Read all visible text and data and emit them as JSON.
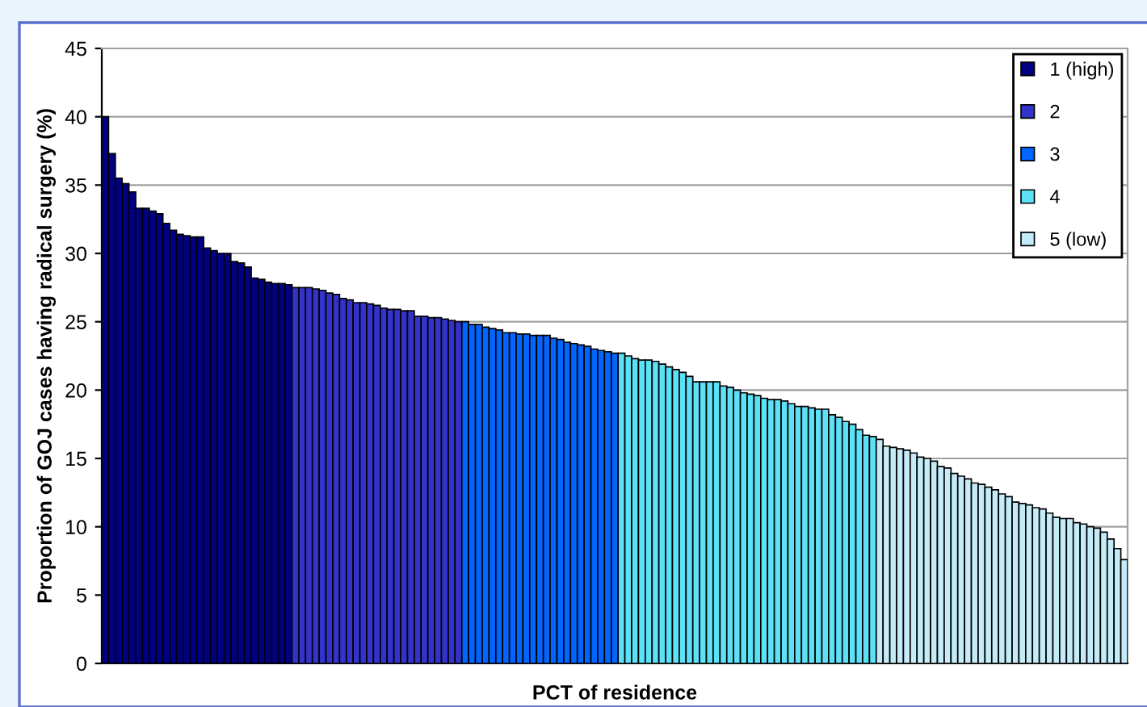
{
  "chart_data": {
    "type": "bar",
    "xlabel": "PCT of residence",
    "ylabel": "Proportion of GOJ cases having radical surgery (%)",
    "categories": [
      null,
      null,
      null,
      null,
      null,
      null,
      null,
      null,
      null,
      null,
      null,
      null,
      null,
      null,
      null,
      null,
      null,
      null,
      null,
      null,
      null,
      null,
      null,
      null,
      null,
      null,
      null,
      null,
      null,
      null,
      null,
      null,
      null,
      null,
      null,
      null,
      null,
      null,
      null,
      null,
      null,
      null,
      null,
      null,
      null,
      null,
      null,
      null,
      null,
      null,
      null,
      null,
      null,
      null,
      null,
      null,
      null,
      null,
      null,
      null,
      null,
      null,
      null,
      null,
      null,
      null,
      null,
      null,
      null,
      null,
      null,
      null,
      null,
      null,
      null,
      null,
      null,
      null,
      null,
      null,
      null,
      null,
      null,
      null,
      null,
      null,
      null,
      null,
      null,
      null,
      null,
      null,
      null,
      null,
      null,
      null,
      null,
      null,
      null,
      null,
      null,
      null,
      null,
      null,
      null,
      null,
      null,
      null,
      null,
      null,
      null,
      null,
      null,
      null,
      null,
      null,
      null,
      null,
      null,
      null,
      null,
      null,
      null,
      null,
      null,
      null,
      null,
      null,
      null,
      null,
      null,
      null,
      null,
      null,
      null,
      null,
      null,
      null,
      null,
      null,
      null,
      null,
      null,
      null,
      null,
      null,
      null,
      null,
      null,
      null,
      null
    ],
    "series": [
      {
        "name": "1 (high)",
        "color": "#000080",
        "values": [
          40,
          37.3,
          35.5,
          35.1,
          34.5,
          33.3,
          33.3,
          33.1,
          32.9,
          32.2,
          31.7,
          31.4,
          31.3,
          31.2,
          31.2,
          30.4,
          30.2,
          30.0,
          30.0,
          29.4,
          29.3,
          29.0,
          28.2,
          28.1,
          27.9,
          27.8,
          27.8,
          27.7,
          null,
          null,
          null,
          null,
          null,
          null,
          null,
          null,
          null,
          null,
          null,
          null,
          null,
          null,
          null,
          null,
          null,
          null,
          null,
          null,
          null,
          null,
          null,
          null,
          null,
          null,
          null,
          null,
          null,
          null,
          null,
          null,
          null,
          null,
          null,
          null,
          null,
          null,
          null,
          null,
          null,
          null,
          null,
          null,
          null,
          null,
          null,
          null,
          null,
          null,
          null,
          null,
          null,
          null,
          null,
          null,
          null,
          null,
          null,
          null,
          null,
          null,
          null,
          null,
          null,
          null,
          null,
          null,
          null,
          null,
          null,
          null,
          null,
          null,
          null,
          null,
          null,
          null,
          null,
          null,
          null,
          null,
          null,
          null,
          null,
          null,
          null,
          null,
          null,
          null,
          null,
          null,
          null,
          null,
          null,
          null,
          null,
          null,
          null,
          null,
          null,
          null,
          null,
          null,
          null,
          null,
          null,
          null,
          null,
          null,
          null,
          null,
          null,
          null,
          null,
          null,
          null,
          null,
          null,
          null,
          null,
          null,
          null
        ]
      },
      {
        "name": "2",
        "color": "#3333cc",
        "values": [
          null,
          null,
          null,
          null,
          null,
          null,
          null,
          null,
          null,
          null,
          null,
          null,
          null,
          null,
          null,
          null,
          null,
          null,
          null,
          null,
          null,
          null,
          null,
          null,
          null,
          null,
          null,
          null,
          27.5,
          27.5,
          27.5,
          27.4,
          27.3,
          27.1,
          27.0,
          26.7,
          26.6,
          26.4,
          26.4,
          26.3,
          26.2,
          26.0,
          25.9,
          25.9,
          25.8,
          25.8,
          25.4,
          25.4,
          25.3,
          25.3,
          25.2,
          25.1,
          25.0,
          null,
          null,
          null,
          null,
          null,
          null,
          null,
          null,
          null,
          null,
          null,
          null,
          null,
          null,
          null,
          null,
          null,
          null,
          null,
          null,
          null,
          null,
          null,
          null,
          null,
          null,
          null,
          null,
          null,
          null,
          null,
          null,
          null,
          null,
          null,
          null,
          null,
          null,
          null,
          null,
          null,
          null,
          null,
          null,
          null,
          null,
          null,
          null,
          null,
          null,
          null,
          null,
          null,
          null,
          null,
          null,
          null,
          null,
          null,
          null,
          null,
          null,
          null,
          null,
          null,
          null,
          null,
          null,
          null,
          null,
          null,
          null,
          null,
          null,
          null,
          null,
          null,
          null,
          null,
          null,
          null,
          null,
          null,
          null,
          null,
          null,
          null,
          null,
          null,
          null,
          null,
          null,
          null,
          null,
          null,
          null,
          null,
          null
        ]
      },
      {
        "name": "3",
        "color": "#0066ff",
        "values": [
          null,
          null,
          null,
          null,
          null,
          null,
          null,
          null,
          null,
          null,
          null,
          null,
          null,
          null,
          null,
          null,
          null,
          null,
          null,
          null,
          null,
          null,
          null,
          null,
          null,
          null,
          null,
          null,
          null,
          null,
          null,
          null,
          null,
          null,
          null,
          null,
          null,
          null,
          null,
          null,
          null,
          null,
          null,
          null,
          null,
          null,
          null,
          null,
          null,
          null,
          null,
          null,
          null,
          25.0,
          24.8,
          24.8,
          24.6,
          24.5,
          24.4,
          24.2,
          24.2,
          24.1,
          24.1,
          24.0,
          24.0,
          24.0,
          23.8,
          23.7,
          23.5,
          23.4,
          23.3,
          23.2,
          23.0,
          22.9,
          22.8,
          22.7,
          null,
          null,
          null,
          null,
          null,
          null,
          null,
          null,
          null,
          null,
          null,
          null,
          null,
          null,
          null,
          null,
          null,
          null,
          null,
          null,
          null,
          null,
          null,
          null,
          null,
          null,
          null,
          null,
          null,
          null,
          null,
          null,
          null,
          null,
          null,
          null,
          null,
          null,
          null,
          null,
          null,
          null,
          null,
          null,
          null,
          null,
          null,
          null,
          null,
          null,
          null,
          null,
          null,
          null,
          null,
          null,
          null,
          null,
          null,
          null,
          null,
          null,
          null,
          null,
          null,
          null,
          null,
          null,
          null,
          null,
          null,
          null,
          null,
          null,
          null
        ]
      },
      {
        "name": "4",
        "color": "#5ce1f7",
        "values": [
          null,
          null,
          null,
          null,
          null,
          null,
          null,
          null,
          null,
          null,
          null,
          null,
          null,
          null,
          null,
          null,
          null,
          null,
          null,
          null,
          null,
          null,
          null,
          null,
          null,
          null,
          null,
          null,
          null,
          null,
          null,
          null,
          null,
          null,
          null,
          null,
          null,
          null,
          null,
          null,
          null,
          null,
          null,
          null,
          null,
          null,
          null,
          null,
          null,
          null,
          null,
          null,
          null,
          null,
          null,
          null,
          null,
          null,
          null,
          null,
          null,
          null,
          null,
          null,
          null,
          null,
          null,
          null,
          null,
          null,
          null,
          null,
          null,
          null,
          null,
          null,
          22.7,
          22.5,
          22.3,
          22.2,
          22.2,
          22.1,
          21.9,
          21.7,
          21.5,
          21.3,
          21.0,
          20.6,
          20.6,
          20.6,
          20.6,
          20.3,
          20.2,
          20.0,
          19.8,
          19.7,
          19.6,
          19.4,
          19.3,
          19.3,
          19.2,
          19.0,
          18.8,
          18.8,
          18.7,
          18.6,
          18.6,
          18.2,
          18.0,
          17.7,
          17.5,
          17.1,
          16.7,
          16.6,
          null,
          null,
          null,
          null,
          null,
          null,
          null,
          null,
          null,
          null,
          null,
          null,
          null,
          null,
          null,
          null,
          null,
          null,
          null,
          null,
          null,
          null,
          null,
          null,
          null,
          null,
          null,
          null,
          null,
          null,
          null,
          null,
          null,
          null,
          null,
          null,
          null
        ]
      },
      {
        "name": "5 (low)",
        "color": "#c4ecf8",
        "values": [
          null,
          null,
          null,
          null,
          null,
          null,
          null,
          null,
          null,
          null,
          null,
          null,
          null,
          null,
          null,
          null,
          null,
          null,
          null,
          null,
          null,
          null,
          null,
          null,
          null,
          null,
          null,
          null,
          null,
          null,
          null,
          null,
          null,
          null,
          null,
          null,
          null,
          null,
          null,
          null,
          null,
          null,
          null,
          null,
          null,
          null,
          null,
          null,
          null,
          null,
          null,
          null,
          null,
          null,
          null,
          null,
          null,
          null,
          null,
          null,
          null,
          null,
          null,
          null,
          null,
          null,
          null,
          null,
          null,
          null,
          null,
          null,
          null,
          null,
          null,
          null,
          null,
          null,
          null,
          null,
          null,
          null,
          null,
          null,
          null,
          null,
          null,
          null,
          null,
          null,
          null,
          null,
          null,
          null,
          null,
          null,
          null,
          null,
          null,
          null,
          null,
          null,
          null,
          null,
          null,
          null,
          null,
          null,
          null,
          null,
          null,
          null,
          null,
          null,
          16.4,
          15.9,
          15.8,
          15.7,
          15.6,
          15.4,
          15.1,
          15.0,
          14.8,
          14.4,
          14.3,
          13.9,
          13.7,
          13.5,
          13.2,
          13.1,
          12.9,
          12.7,
          12.4,
          12.2,
          11.8,
          11.7,
          11.6,
          11.4,
          11.3,
          11.0,
          10.7,
          10.6,
          10.6,
          10.3,
          10.2,
          10.0,
          9.9,
          9.6,
          9.1,
          8.4,
          7.6
        ]
      }
    ],
    "ylim": [
      0,
      45
    ],
    "yticks": [
      0,
      5,
      10,
      15,
      20,
      25,
      30,
      35,
      40,
      45
    ],
    "grid": "y",
    "legend": "top right"
  }
}
